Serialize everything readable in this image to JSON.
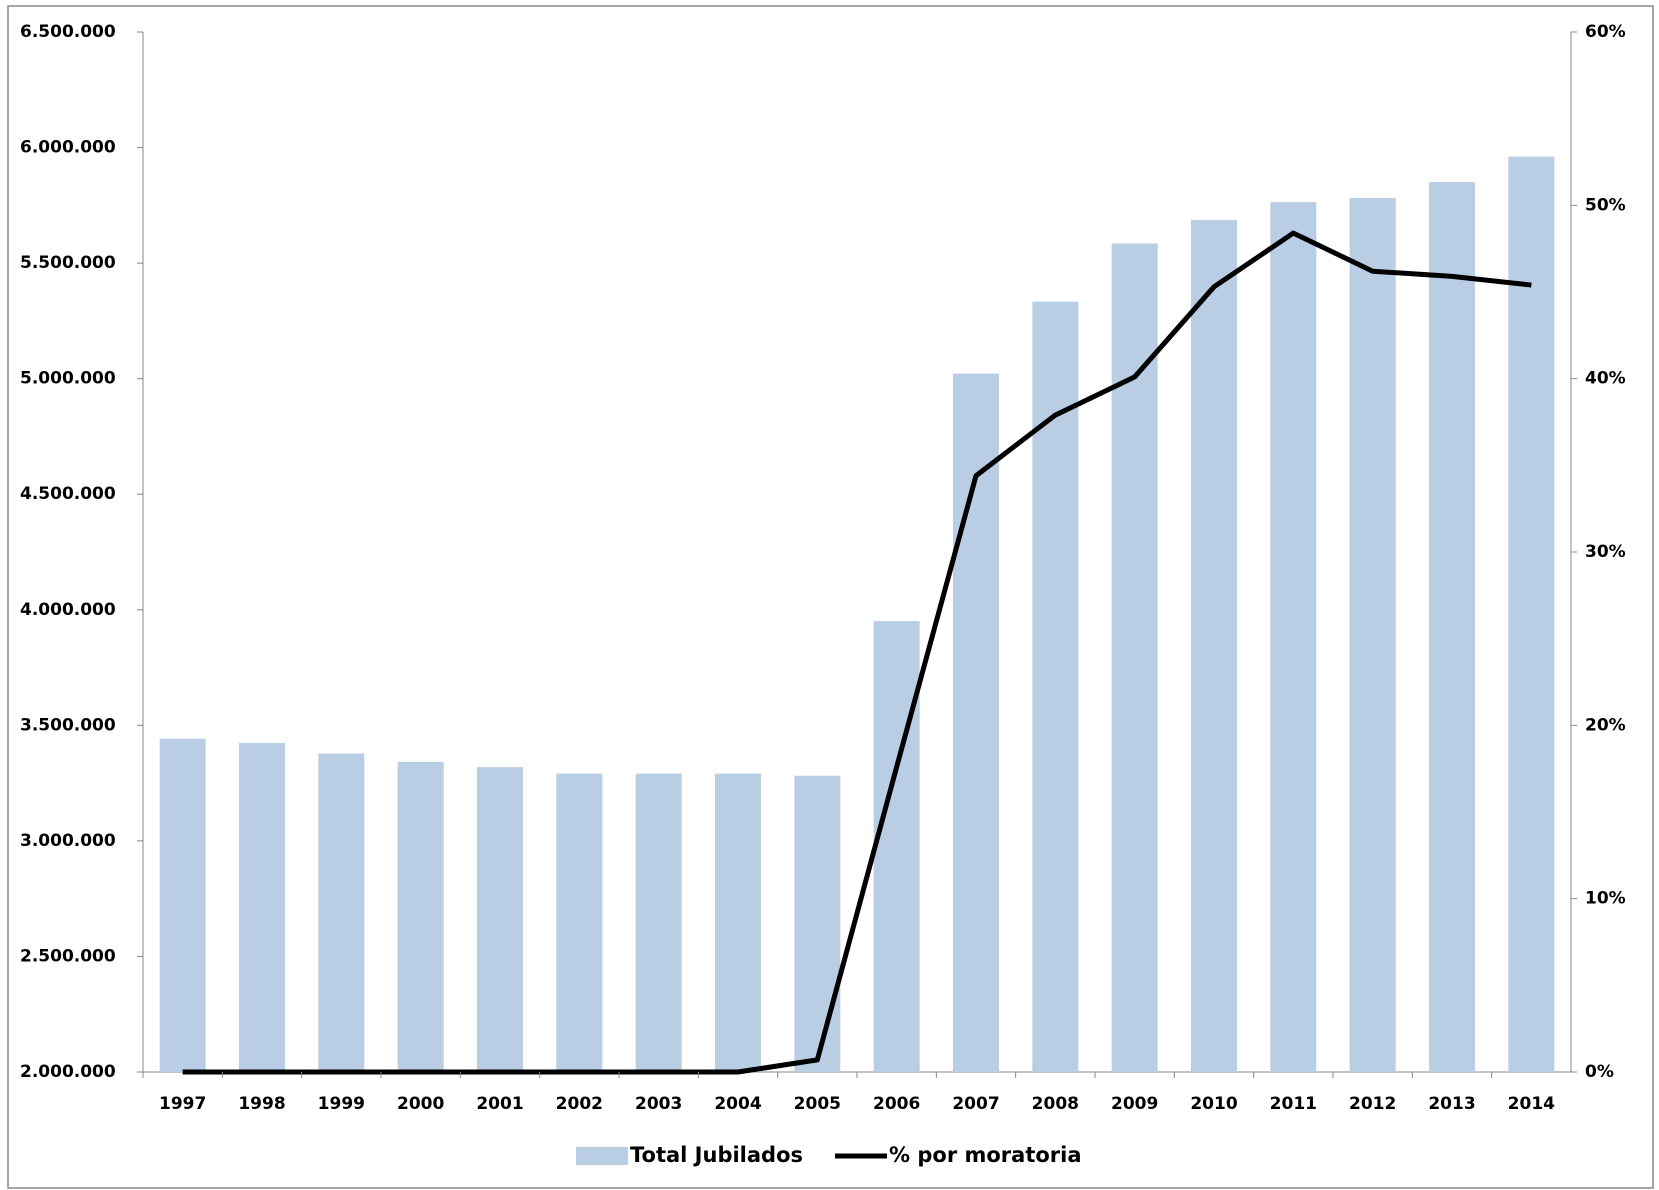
{
  "chart_data": {
    "type": "bar-line",
    "categories": [
      "1997",
      "1998",
      "1999",
      "2000",
      "2001",
      "2002",
      "2003",
      "2004",
      "2005",
      "2006",
      "2007",
      "2008",
      "2009",
      "2010",
      "2011",
      "2012",
      "2013",
      "2014"
    ],
    "series": [
      {
        "name": "Total Jubilados",
        "type": "bar",
        "color": "#b9cde4",
        "values": [
          3442000,
          3424000,
          3378000,
          3342000,
          3319000,
          3291000,
          3291000,
          3291000,
          3282000,
          3951000,
          5022000,
          5333000,
          5585000,
          5686000,
          5764000,
          5782000,
          5851000,
          5961000
        ]
      },
      {
        "name": "% por moratoria",
        "type": "line",
        "axis": "y2",
        "color": "#000000",
        "values": [
          0,
          0,
          0,
          0,
          0,
          0,
          0,
          0,
          0.7,
          17.6,
          34.4,
          37.9,
          40.1,
          45.3,
          48.4,
          46.2,
          45.9,
          45.4
        ]
      }
    ],
    "ylim": [
      2000000,
      6500000
    ],
    "yticks": [
      {
        "value": 2000000,
        "label": "2.000.000"
      },
      {
        "value": 2500000,
        "label": "2.500.000"
      },
      {
        "value": 3000000,
        "label": "3.000.000"
      },
      {
        "value": 3500000,
        "label": "3.500.000"
      },
      {
        "value": 4000000,
        "label": "4.000.000"
      },
      {
        "value": 4500000,
        "label": "4.500.000"
      },
      {
        "value": 5000000,
        "label": "5.000.000"
      },
      {
        "value": 5500000,
        "label": "5.500.000"
      },
      {
        "value": 6000000,
        "label": "6.000.000"
      },
      {
        "value": 6500000,
        "label": "6.500.000"
      }
    ],
    "y2lim": [
      0,
      60
    ],
    "y2ticks": [
      {
        "value": 0,
        "label": "0%"
      },
      {
        "value": 10,
        "label": "10%"
      },
      {
        "value": 20,
        "label": "20%"
      },
      {
        "value": 30,
        "label": "30%"
      },
      {
        "value": 40,
        "label": "40%"
      },
      {
        "value": 50,
        "label": "50%"
      },
      {
        "value": 60,
        "label": "60%"
      }
    ],
    "grid": false,
    "legend": "bottom"
  }
}
